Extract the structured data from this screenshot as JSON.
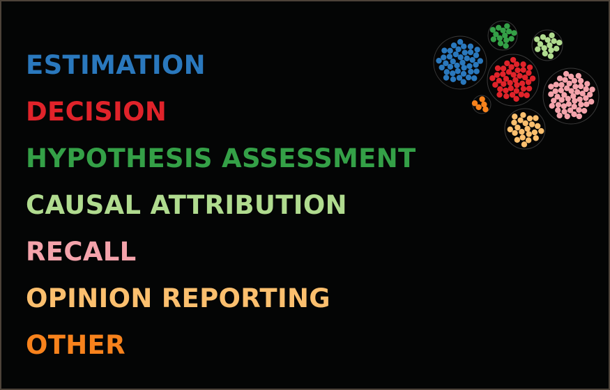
{
  "categories": [
    {
      "label": "ESTIMATION",
      "color": "#2a78bd"
    },
    {
      "label": "DECISION",
      "color": "#e0232a"
    },
    {
      "label": "HYPOTHESIS ASSESSMENT",
      "color": "#34a047"
    },
    {
      "label": "CAUSAL ATTRIBUTION",
      "color": "#b0db8f"
    },
    {
      "label": "RECALL",
      "color": "#f4a3ab"
    },
    {
      "label": "OPINION REPORTING",
      "color": "#fbbf6e"
    },
    {
      "label": "OTHER",
      "color": "#f7821c"
    }
  ],
  "clusters": [
    {
      "category": "ESTIMATION",
      "color": "#2a78bd",
      "dots": 40
    },
    {
      "category": "DECISION",
      "color": "#e0232a",
      "dots": 40
    },
    {
      "category": "HYPOTHESIS ASSESSMENT",
      "color": "#34a047",
      "dots": 14
    },
    {
      "category": "CAUSAL ATTRIBUTION",
      "color": "#b0db8f",
      "dots": 14
    },
    {
      "category": "RECALL",
      "color": "#f4a3ab",
      "dots": 50
    },
    {
      "category": "OPINION REPORTING",
      "color": "#fbbf6e",
      "dots": 22
    },
    {
      "category": "OTHER",
      "color": "#f7821c",
      "dots": 5
    }
  ]
}
